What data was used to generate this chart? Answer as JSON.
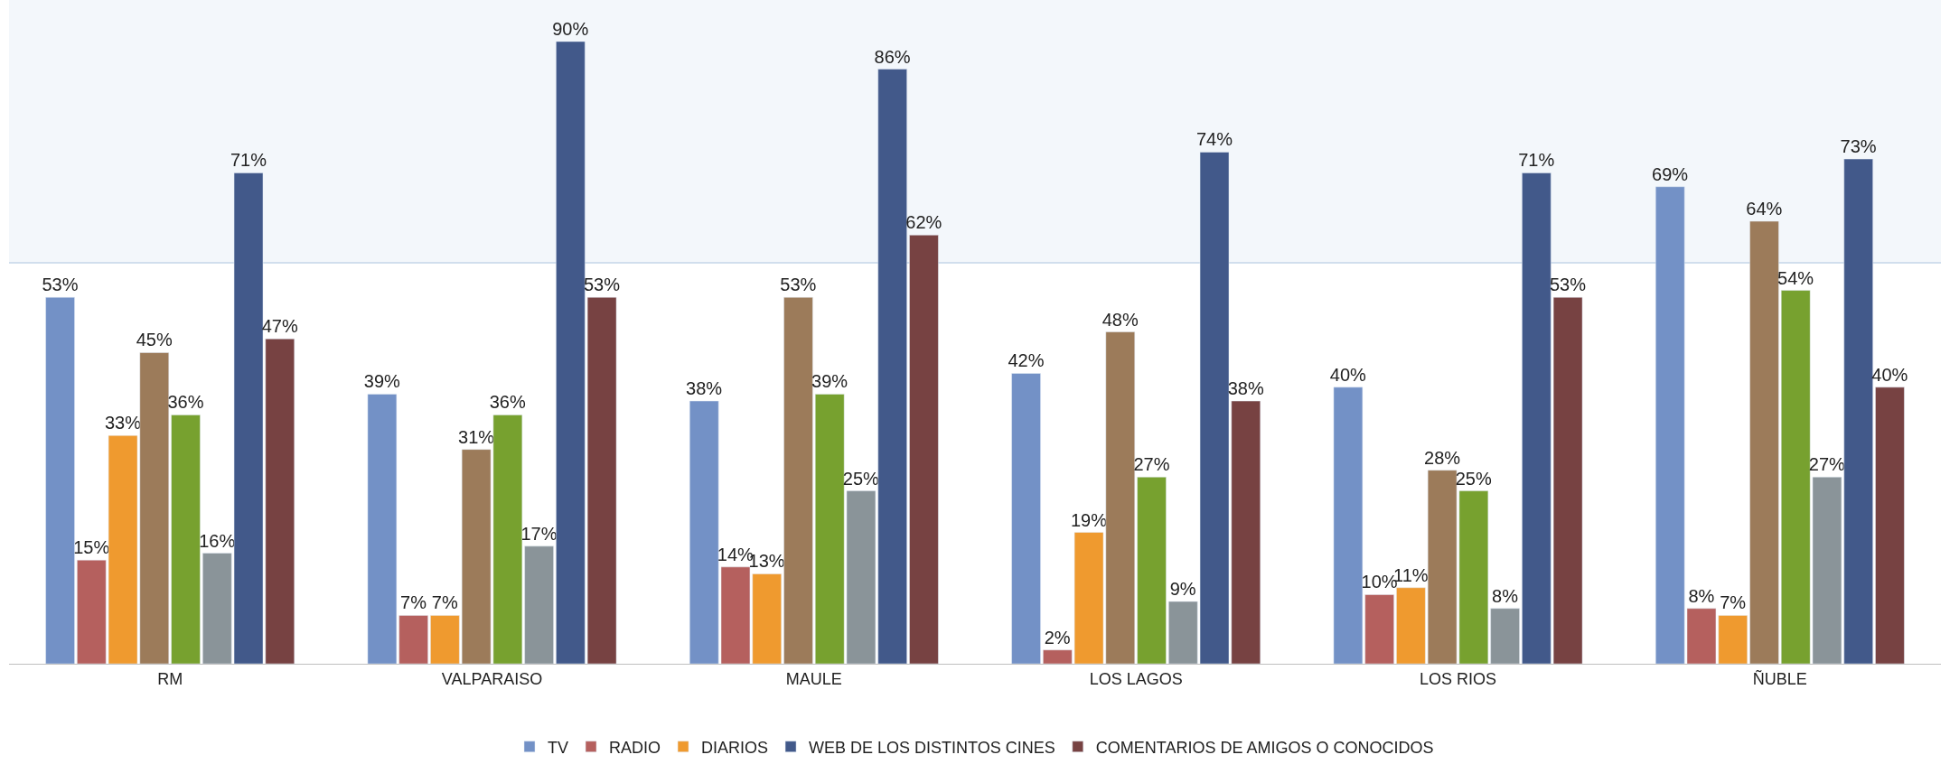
{
  "chart_data": {
    "type": "bar",
    "categories": [
      "RM",
      "VALPARAISO",
      "MAULE",
      "LOS LAGOS",
      "LOS RIOS",
      "ÑUBLE"
    ],
    "series": [
      {
        "name": "TV",
        "color": "#7391c6",
        "values": [
          53,
          39,
          38,
          42,
          40,
          69
        ],
        "value_labels": [
          "53%",
          "39%",
          "38%",
          "42%",
          "40%",
          "69%"
        ]
      },
      {
        "name": "RADIO",
        "color": "#b5605e",
        "values": [
          15,
          7,
          14,
          2,
          10,
          8
        ],
        "value_labels": [
          "15%",
          "7%",
          "14%",
          "2%",
          "10%",
          "8%"
        ]
      },
      {
        "name": "DIARIOS",
        "color": "#ef9a2f",
        "values": [
          33,
          7,
          13,
          19,
          11,
          7
        ],
        "value_labels": [
          "33%",
          "7%",
          "13%",
          "19%",
          "11%",
          "7%"
        ]
      },
      {
        "color": "#9c7b5a",
        "values": [
          45,
          31,
          53,
          48,
          28,
          64
        ],
        "value_labels": [
          "45%",
          "31%",
          "53%",
          "48%",
          "28%",
          "64%"
        ]
      },
      {
        "color": "#77a12f",
        "values": [
          36,
          36,
          39,
          27,
          25,
          54
        ],
        "value_labels": [
          "36%",
          "36%",
          "39%",
          "27%",
          "25%",
          "54%"
        ]
      },
      {
        "color": "#8a9499",
        "values": [
          16,
          17,
          25,
          9,
          8,
          27
        ],
        "value_labels": [
          "16%",
          "17%",
          "25%",
          "9%",
          "8%",
          "27%"
        ]
      },
      {
        "name": "WEB DE LOS DISTINTOS CINES",
        "color": "#42598a",
        "values": [
          71,
          90,
          86,
          74,
          71,
          73
        ],
        "value_labels": [
          "71%",
          "90%",
          "86%",
          "74%",
          "71%",
          "73%"
        ]
      },
      {
        "name": "COMENTARIOS DE AMIGOS O CONOCIDOS",
        "color": "#774242",
        "values": [
          47,
          53,
          62,
          38,
          53,
          40
        ],
        "value_labels": [
          "47%",
          "53%",
          "62%",
          "38%",
          "53%",
          "40%"
        ]
      }
    ],
    "ylim": [
      0,
      96
    ],
    "tick_labels": "x",
    "legend": "bottom",
    "ref_lines": [
      {
        "axis": "y",
        "value": 58,
        "color": "#c5d6e8"
      }
    ],
    "bands": [
      {
        "axis": "y",
        "from": 58,
        "to": 96,
        "color": "#f3f7fb"
      }
    ]
  }
}
